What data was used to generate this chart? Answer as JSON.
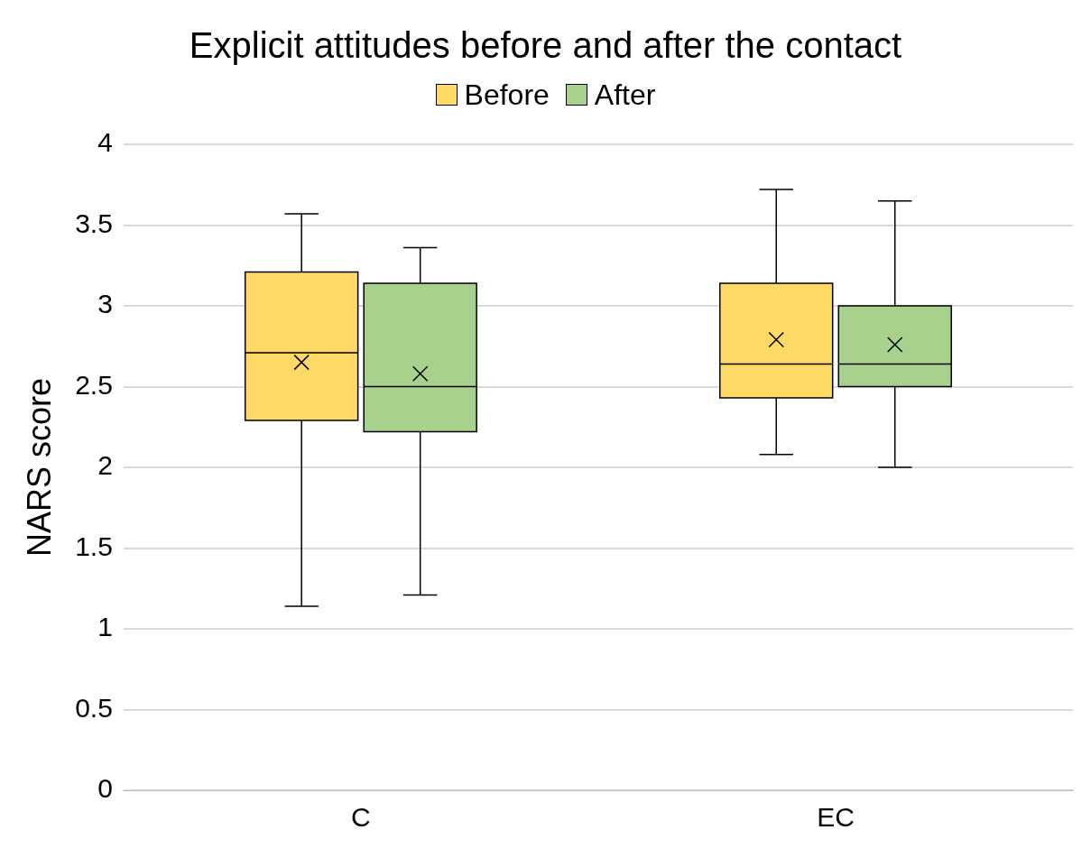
{
  "chart_data": {
    "type": "box",
    "title": "Explicit attitudes before and after the contact",
    "ylabel": "NARS score",
    "categories": [
      "C",
      "EC"
    ],
    "series": [
      {
        "name": "Before",
        "color": "#ffd966",
        "boxes": [
          {
            "low": 1.14,
            "q1": 2.29,
            "median": 2.71,
            "q3": 3.21,
            "high": 3.57,
            "mean": 2.65
          },
          {
            "low": 2.08,
            "q1": 2.43,
            "median": 2.64,
            "q3": 3.14,
            "high": 3.72,
            "mean": 2.79
          }
        ]
      },
      {
        "name": "After",
        "color": "#a9d18e",
        "boxes": [
          {
            "low": 1.21,
            "q1": 2.22,
            "median": 2.5,
            "q3": 3.14,
            "high": 3.36,
            "mean": 2.58
          },
          {
            "low": 2.0,
            "q1": 2.5,
            "median": 2.64,
            "q3": 3.0,
            "high": 3.65,
            "mean": 2.76
          }
        ]
      }
    ],
    "ylim": [
      0,
      4
    ],
    "yticks": [
      0,
      0.5,
      1,
      1.5,
      2,
      2.5,
      3,
      3.5,
      4
    ],
    "grid": "y",
    "legend": "top"
  }
}
